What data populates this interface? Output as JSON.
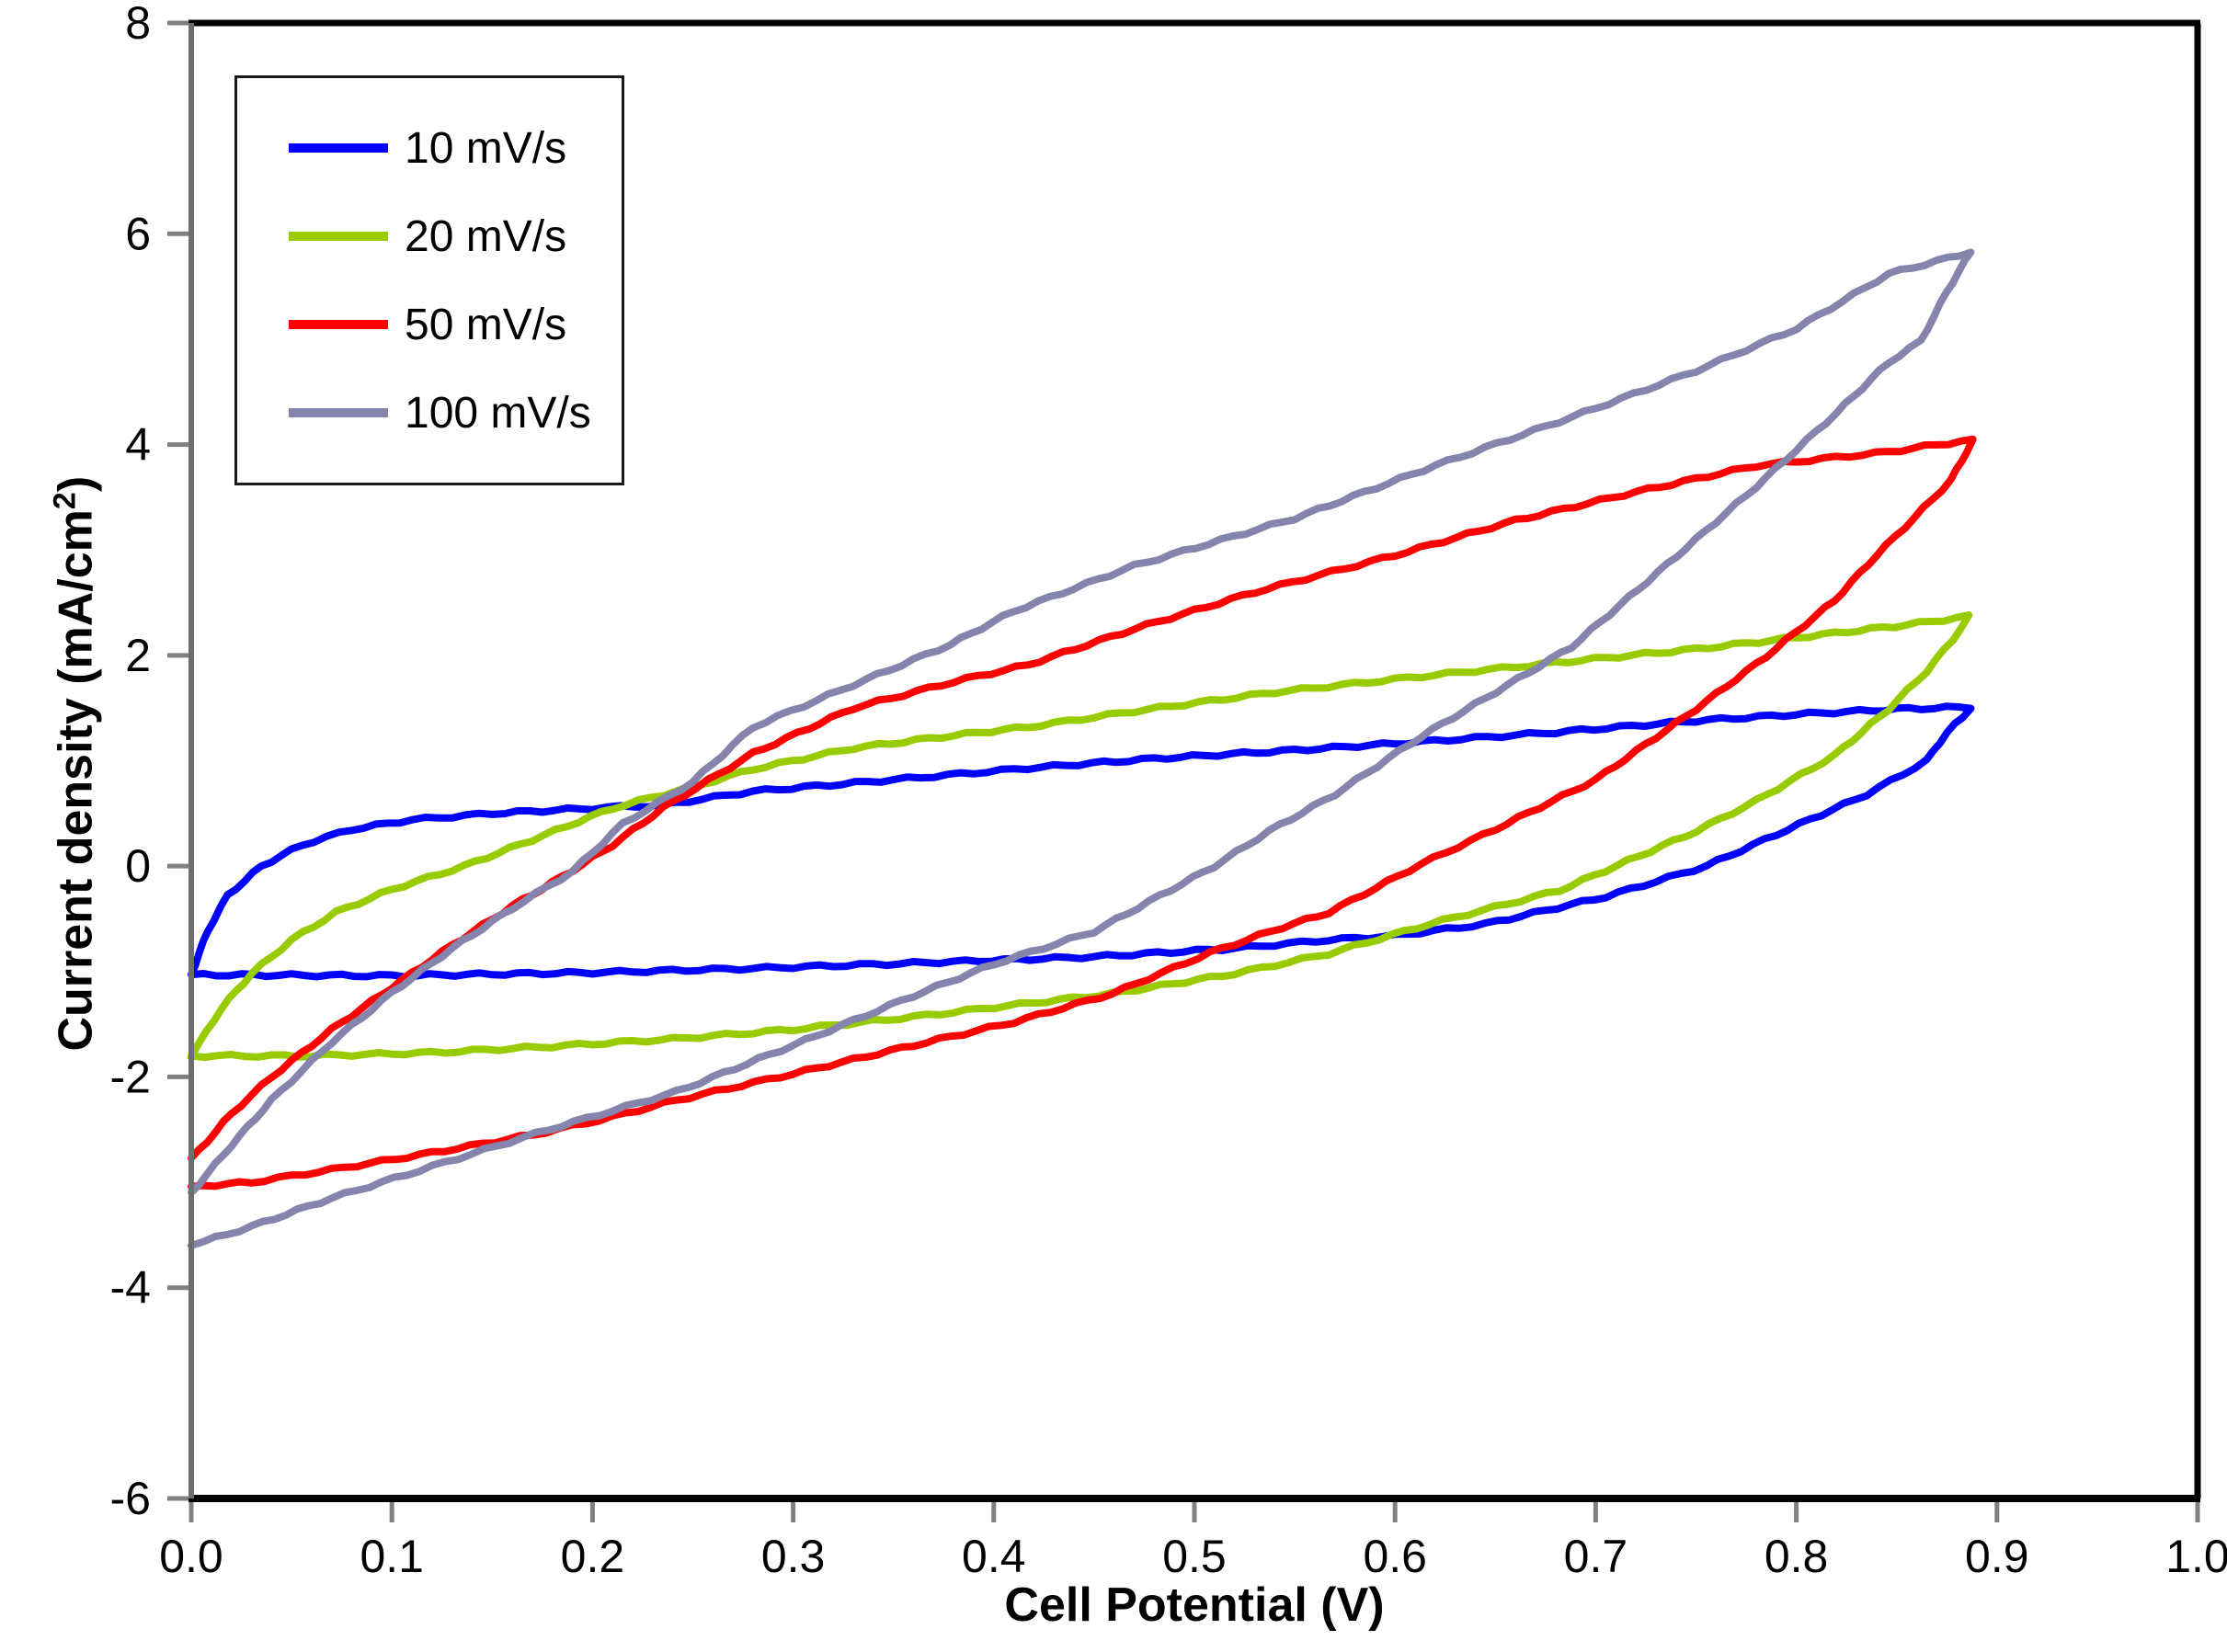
{
  "chart": {
    "background_color": "#ffffff",
    "border_color": "#000000",
    "axis_color": "#808080",
    "text_color": "#000000"
  },
  "chart_data": {
    "type": "line",
    "subtype": "cyclic-voltammogram",
    "title": "",
    "xlabel": "Cell Potential (V)",
    "ylabel": "Current density (mA/cm²)",
    "ylabel_parts": {
      "main": "Current density (mA/cm",
      "sup": "2",
      "end": ")"
    },
    "xlim": [
      0.0,
      1.0
    ],
    "ylim": [
      -6,
      8
    ],
    "x_ticks": [
      "0.0",
      "0.1",
      "0.2",
      "0.3",
      "0.4",
      "0.5",
      "0.6",
      "0.7",
      "0.8",
      "0.9",
      "1.0"
    ],
    "y_ticks": [
      "8",
      "6",
      "4",
      "2",
      "0",
      "-2",
      "-4",
      "-6"
    ],
    "grid": false,
    "legend_position": "top-left",
    "series": [
      {
        "name": "10 mV/s",
        "scan_rate_mV_per_s": 10,
        "color": "#0000ff",
        "points": [
          [
            0.0,
            -1.03
          ],
          [
            0.008,
            -0.62
          ],
          [
            0.018,
            -0.28
          ],
          [
            0.035,
            0.0
          ],
          [
            0.055,
            0.2
          ],
          [
            0.08,
            0.35
          ],
          [
            0.11,
            0.44
          ],
          [
            0.15,
            0.5
          ],
          [
            0.2,
            0.55
          ],
          [
            0.235,
            0.58
          ],
          [
            0.28,
            0.71
          ],
          [
            0.35,
            0.82
          ],
          [
            0.417,
            0.93
          ],
          [
            0.48,
            1.02
          ],
          [
            0.55,
            1.1
          ],
          [
            0.613,
            1.18
          ],
          [
            0.68,
            1.27
          ],
          [
            0.75,
            1.38
          ],
          [
            0.8,
            1.44
          ],
          [
            0.85,
            1.49
          ],
          [
            0.887,
            1.51
          ],
          [
            0.883,
            1.41
          ],
          [
            0.875,
            1.27
          ],
          [
            0.865,
            1.0
          ],
          [
            0.835,
            0.68
          ],
          [
            0.79,
            0.3
          ],
          [
            0.755,
            0.0
          ],
          [
            0.705,
            -0.29
          ],
          [
            0.645,
            -0.55
          ],
          [
            0.6,
            -0.66
          ],
          [
            0.567,
            -0.7
          ],
          [
            0.52,
            -0.78
          ],
          [
            0.45,
            -0.86
          ],
          [
            0.36,
            -0.92
          ],
          [
            0.28,
            -0.97
          ],
          [
            0.2,
            -1.01
          ],
          [
            0.1,
            -1.04
          ],
          [
            0.0,
            -1.03
          ]
        ]
      },
      {
        "name": "20 mV/s",
        "scan_rate_mV_per_s": 20,
        "color": "#99cc00",
        "points": [
          [
            0.0,
            -1.8
          ],
          [
            0.015,
            -1.35
          ],
          [
            0.03,
            -1.02
          ],
          [
            0.05,
            -0.7
          ],
          [
            0.072,
            -0.44
          ],
          [
            0.1,
            -0.22
          ],
          [
            0.136,
            0.0
          ],
          [
            0.17,
            0.25
          ],
          [
            0.21,
            0.55
          ],
          [
            0.255,
            0.78
          ],
          [
            0.28,
            0.92
          ],
          [
            0.33,
            1.12
          ],
          [
            0.38,
            1.24
          ],
          [
            0.417,
            1.32
          ],
          [
            0.47,
            1.47
          ],
          [
            0.54,
            1.65
          ],
          [
            0.613,
            1.8
          ],
          [
            0.68,
            1.93
          ],
          [
            0.75,
            2.06
          ],
          [
            0.819,
            2.21
          ],
          [
            0.855,
            2.29
          ],
          [
            0.886,
            2.37
          ],
          [
            0.878,
            2.15
          ],
          [
            0.865,
            1.85
          ],
          [
            0.846,
            1.49
          ],
          [
            0.819,
            1.05
          ],
          [
            0.78,
            0.62
          ],
          [
            0.75,
            0.33
          ],
          [
            0.682,
            -0.23
          ],
          [
            0.617,
            -0.55
          ],
          [
            0.567,
            -0.83
          ],
          [
            0.52,
            -1.02
          ],
          [
            0.459,
            -1.21
          ],
          [
            0.4,
            -1.34
          ],
          [
            0.36,
            -1.43
          ],
          [
            0.3,
            -1.55
          ],
          [
            0.24,
            -1.64
          ],
          [
            0.18,
            -1.71
          ],
          [
            0.12,
            -1.77
          ],
          [
            0.06,
            -1.8
          ],
          [
            0.0,
            -1.8
          ]
        ]
      },
      {
        "name": "50 mV/s",
        "scan_rate_mV_per_s": 50,
        "color": "#ff0000",
        "points": [
          [
            0.0,
            -2.78
          ],
          [
            0.02,
            -2.35
          ],
          [
            0.04,
            -2.0
          ],
          [
            0.07,
            -1.55
          ],
          [
            0.1,
            -1.15
          ],
          [
            0.13,
            -0.75
          ],
          [
            0.16,
            -0.38
          ],
          [
            0.185,
            -0.1
          ],
          [
            0.21,
            0.2
          ],
          [
            0.235,
            0.55
          ],
          [
            0.28,
            1.07
          ],
          [
            0.33,
            1.5
          ],
          [
            0.38,
            1.75
          ],
          [
            0.417,
            1.91
          ],
          [
            0.47,
            2.25
          ],
          [
            0.53,
            2.6
          ],
          [
            0.6,
            2.95
          ],
          [
            0.66,
            3.28
          ],
          [
            0.72,
            3.55
          ],
          [
            0.78,
            3.8
          ],
          [
            0.846,
            3.93
          ],
          [
            0.87,
            4.0
          ],
          [
            0.888,
            4.04
          ],
          [
            0.877,
            3.66
          ],
          [
            0.859,
            3.31
          ],
          [
            0.84,
            2.95
          ],
          [
            0.819,
            2.52
          ],
          [
            0.785,
            1.99
          ],
          [
            0.75,
            1.49
          ],
          [
            0.7,
            0.82
          ],
          [
            0.65,
            0.35
          ],
          [
            0.613,
            0.02
          ],
          [
            0.567,
            -0.44
          ],
          [
            0.544,
            -0.58
          ],
          [
            0.508,
            -0.82
          ],
          [
            0.459,
            -1.21
          ],
          [
            0.41,
            -1.48
          ],
          [
            0.36,
            -1.7
          ],
          [
            0.3,
            -1.97
          ],
          [
            0.242,
            -2.22
          ],
          [
            0.21,
            -2.38
          ],
          [
            0.17,
            -2.55
          ],
          [
            0.12,
            -2.72
          ],
          [
            0.07,
            -2.88
          ],
          [
            0.03,
            -3.0
          ],
          [
            0.0,
            -3.04
          ]
        ]
      },
      {
        "name": "100 mV/s",
        "scan_rate_mV_per_s": 100,
        "color": "#8484ad",
        "points": [
          [
            0.0,
            -3.1
          ],
          [
            0.02,
            -2.65
          ],
          [
            0.04,
            -2.22
          ],
          [
            0.07,
            -1.67
          ],
          [
            0.1,
            -1.2
          ],
          [
            0.13,
            -0.78
          ],
          [
            0.16,
            -0.4
          ],
          [
            0.19,
            -0.05
          ],
          [
            0.215,
            0.4
          ],
          [
            0.25,
            0.8
          ],
          [
            0.28,
            1.32
          ],
          [
            0.33,
            1.72
          ],
          [
            0.378,
            2.1
          ],
          [
            0.41,
            2.42
          ],
          [
            0.47,
            2.85
          ],
          [
            0.55,
            3.3
          ],
          [
            0.62,
            3.8
          ],
          [
            0.688,
            4.26
          ],
          [
            0.75,
            4.7
          ],
          [
            0.8,
            5.1
          ],
          [
            0.846,
            5.62
          ],
          [
            0.87,
            5.74
          ],
          [
            0.887,
            5.83
          ],
          [
            0.875,
            5.45
          ],
          [
            0.862,
            4.98
          ],
          [
            0.846,
            4.78
          ],
          [
            0.82,
            4.3
          ],
          [
            0.78,
            3.6
          ],
          [
            0.75,
            3.1
          ],
          [
            0.688,
            2.08
          ],
          [
            0.613,
            1.23
          ],
          [
            0.57,
            0.68
          ],
          [
            0.537,
            0.33
          ],
          [
            0.51,
            0.0
          ],
          [
            0.45,
            -0.62
          ],
          [
            0.4,
            -0.93
          ],
          [
            0.36,
            -1.23
          ],
          [
            0.3,
            -1.7
          ],
          [
            0.242,
            -2.14
          ],
          [
            0.178,
            -2.5
          ],
          [
            0.12,
            -2.85
          ],
          [
            0.07,
            -3.15
          ],
          [
            0.03,
            -3.42
          ],
          [
            0.0,
            -3.6
          ]
        ]
      }
    ]
  }
}
